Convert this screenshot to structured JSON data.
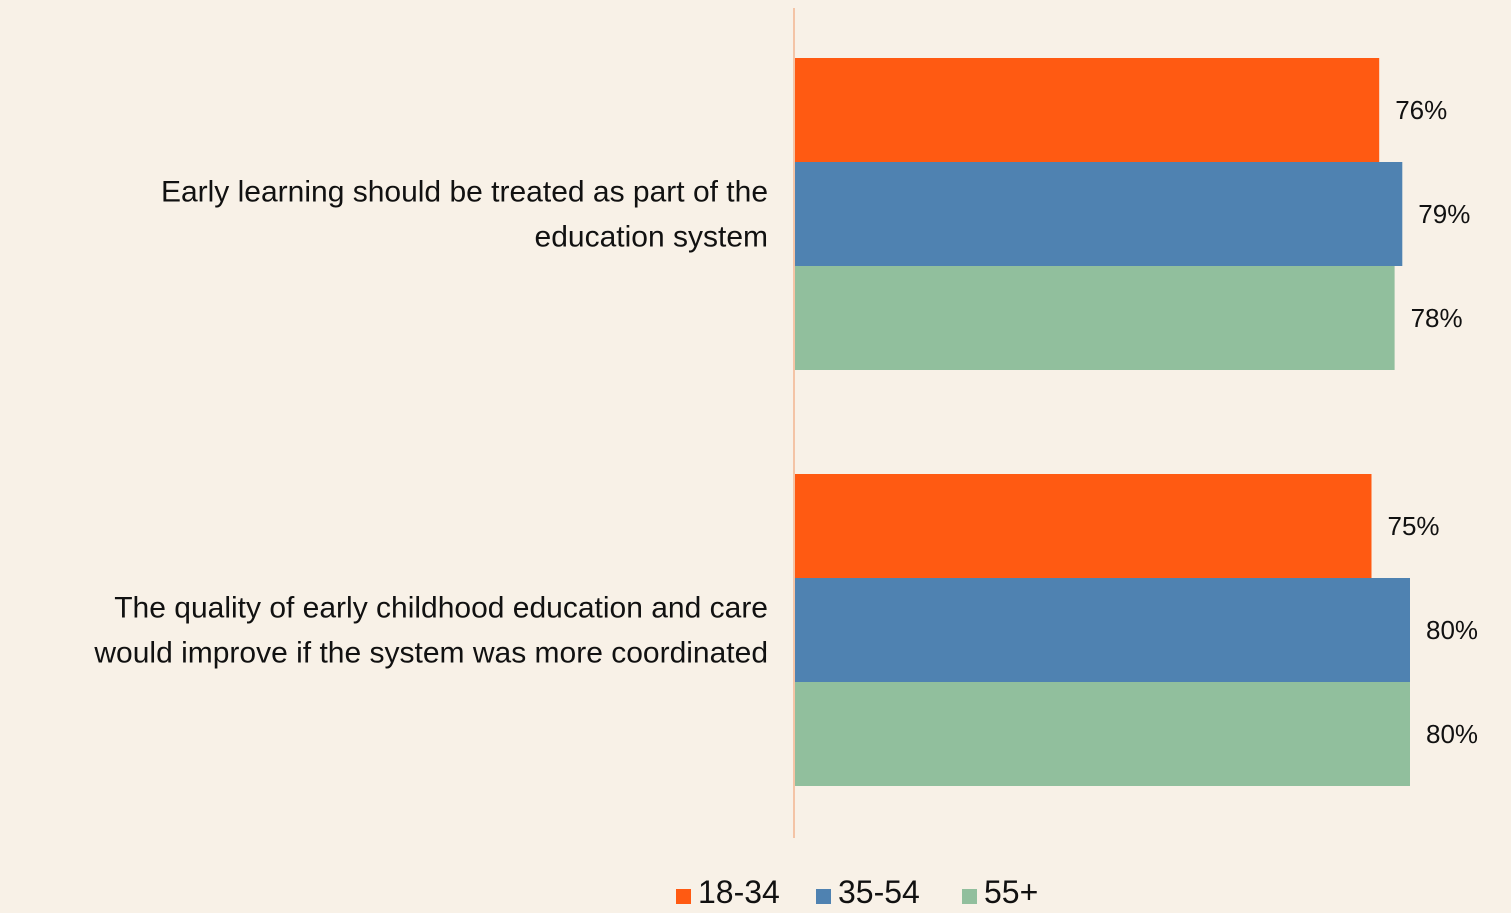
{
  "chart_data": {
    "type": "bar",
    "orientation": "horizontal",
    "title": "",
    "xlabel": "",
    "ylabel": "",
    "xlim": [
      0,
      100
    ],
    "grid": false,
    "legend_position": "bottom",
    "categories": [
      "Early learning should be treated as part of the education system",
      "The quality of early childhood education and care would improve if the system was more coordinated"
    ],
    "category_lines": [
      [
        "Early learning should be treated as part of the",
        "education system"
      ],
      [
        "The quality of early childhood education and care",
        "would improve if the system was more coordinated"
      ]
    ],
    "series": [
      {
        "name": "18-34",
        "color": "#ff5a12",
        "values": [
          76,
          75
        ],
        "labels": [
          "76%",
          "75%"
        ]
      },
      {
        "name": "35-54",
        "color": "#4f82b1",
        "values": [
          79,
          80
        ],
        "labels": [
          "79%",
          "80%"
        ]
      },
      {
        "name": "55+",
        "color": "#91bf9d",
        "values": [
          78,
          80
        ],
        "labels": [
          "78%",
          "80%"
        ]
      }
    ]
  },
  "style": {
    "background": "#f8f1e7",
    "axis_color": "#f4c4a6"
  }
}
